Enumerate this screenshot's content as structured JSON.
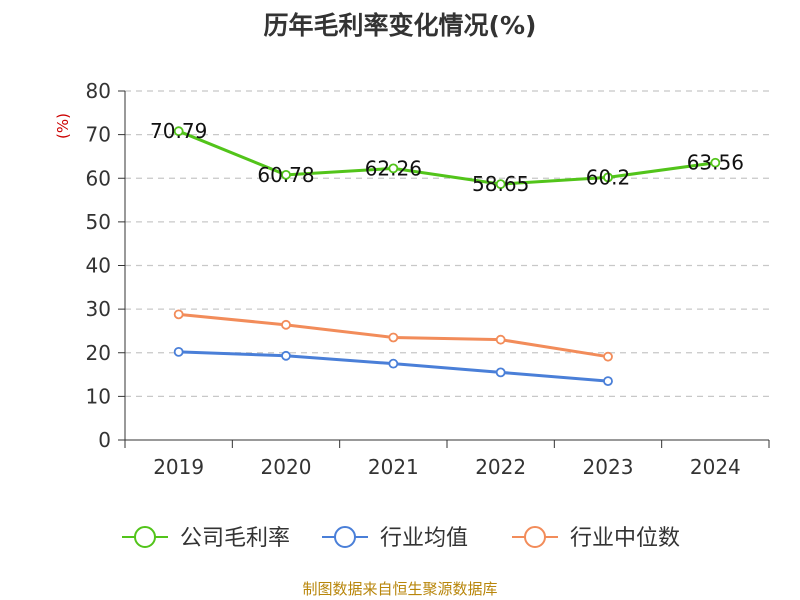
{
  "title": "历年毛利率变化情况(%)",
  "source": "制图数据来自恒生聚源数据库",
  "chart_data": {
    "type": "line",
    "title": "历年毛利率变化情况(%)",
    "ylabel": "(%)",
    "xlabel": "",
    "categories": [
      "2019",
      "2020",
      "2021",
      "2022",
      "2023",
      "2024"
    ],
    "ylim": [
      0,
      80
    ],
    "yticks": [
      0,
      10,
      20,
      30,
      40,
      50,
      60,
      70,
      80
    ],
    "grid": true,
    "legend_position": "bottom",
    "series": [
      {
        "name": "公司毛利率",
        "color": "#52c41a",
        "values": [
          70.79,
          60.78,
          62.26,
          58.65,
          60.2,
          63.56
        ],
        "labels": [
          "70.79",
          "60.78",
          "62.26",
          "58.65",
          "60.2",
          "63.56"
        ]
      },
      {
        "name": "行业均值",
        "color": "#4a7fd8",
        "values": [
          20.2,
          19.3,
          17.5,
          15.5,
          13.5,
          null
        ]
      },
      {
        "name": "行业中位数",
        "color": "#f28c5a",
        "values": [
          28.8,
          26.4,
          23.5,
          23.0,
          19.1,
          null
        ]
      }
    ]
  }
}
